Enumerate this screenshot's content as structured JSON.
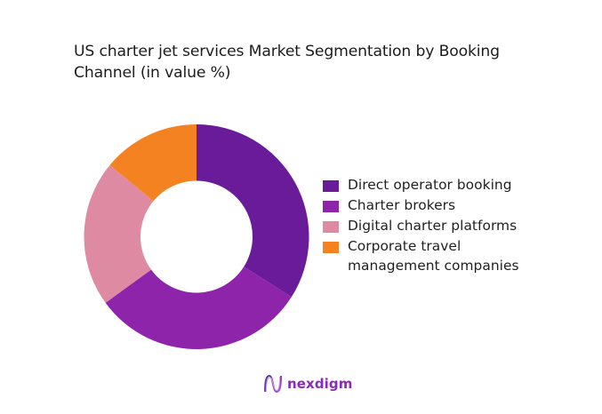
{
  "title": "US charter jet services Market Segmentation by Booking Channel (in value %)",
  "chart_data": {
    "type": "pie",
    "variant": "donut",
    "title": "US charter jet services Market Segmentation by Booking Channel (in value %)",
    "unit": "%",
    "start_angle_deg": 0,
    "direction": "clockwise",
    "legend_position": "right",
    "categories": [
      "Direct operator booking",
      "Charter brokers",
      "Digital charter platforms",
      "Corporate travel management companies"
    ],
    "values": [
      34,
      31,
      21,
      14
    ],
    "colors": [
      "#6A1B9A",
      "#8E24AA",
      "#DE8AA2",
      "#F58220"
    ]
  },
  "legend": {
    "items": [
      {
        "label": "Direct operator booking",
        "color": "#6A1B9A"
      },
      {
        "label": "Charter brokers",
        "color": "#8E24AA"
      },
      {
        "label": "Digital charter platforms",
        "color": "#DE8AA2"
      },
      {
        "label": "Corporate travel management companies",
        "color": "#F58220"
      }
    ]
  },
  "brand": {
    "name": "nexdigm",
    "color": "#8A2BB5",
    "icon": "nexdigm-wave-logo-icon"
  }
}
